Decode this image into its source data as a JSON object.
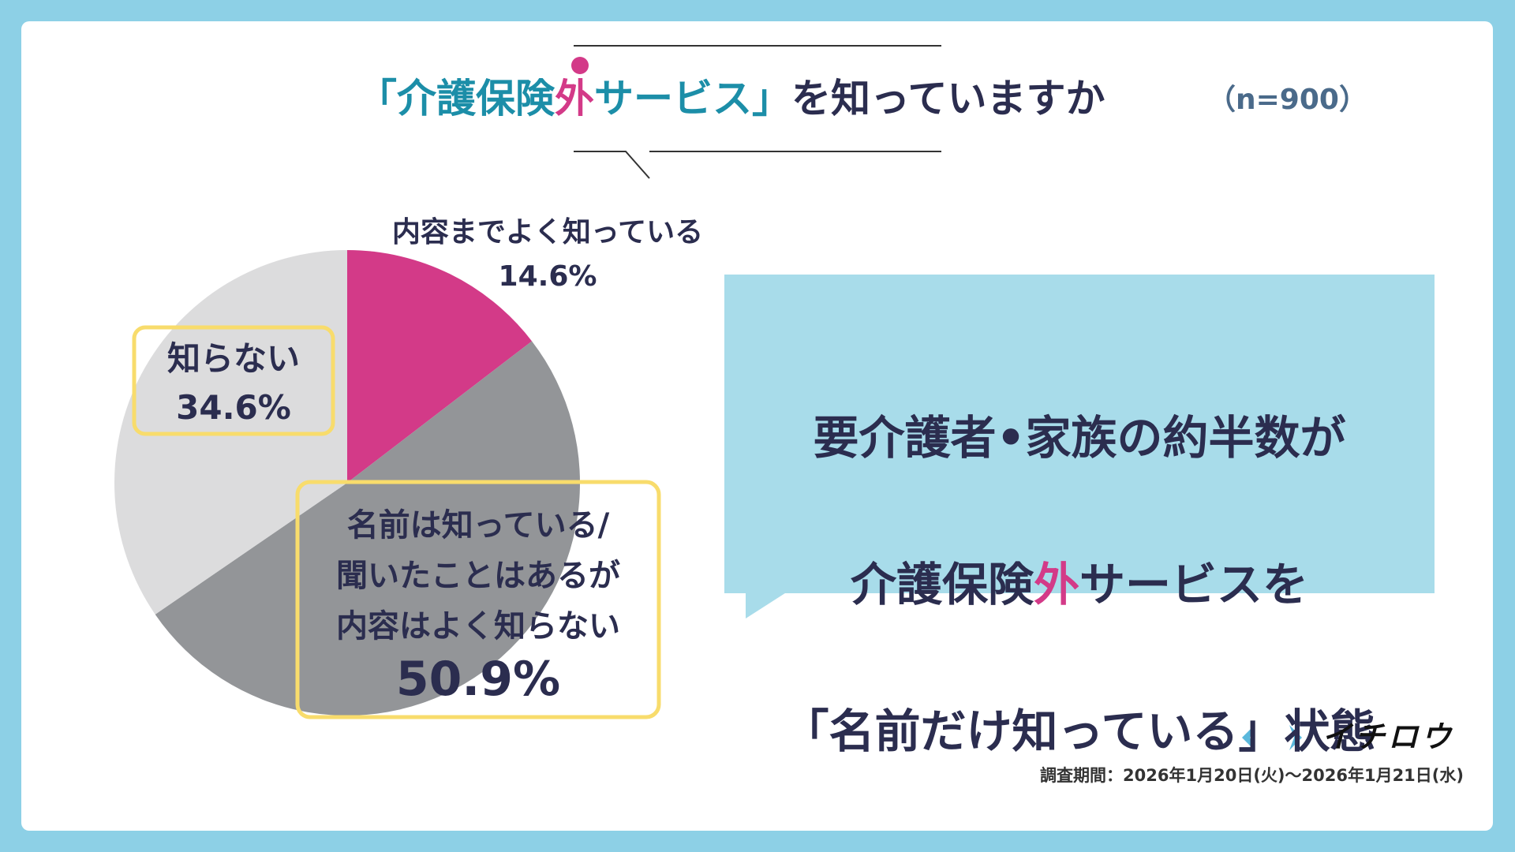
{
  "chart_data": {
    "type": "pie",
    "title": [
      "「介護保険",
      "外",
      "サービス」",
      "を知っていますか"
    ],
    "sample_size": "（n=900）",
    "categories": [
      "内容までよく知っている",
      "名前は知っている/\n聞いたことはあるが\n内容はよく知らない",
      "知らない"
    ],
    "values": [
      14.6,
      50.9,
      34.6
    ],
    "value_labels": [
      "14.6%",
      "50.9%",
      "34.6%"
    ],
    "colors": [
      "#d33a88",
      "#939598",
      "#dcdcdd"
    ],
    "callout": [
      [
        "要介護者•家族の約半数が"
      ],
      [
        "介護保険",
        "外",
        "サービスを"
      ],
      [
        "「名前だけ知っている」状態"
      ]
    ],
    "logo": "イチロウ",
    "survey_period": "調査期間：2026年1月20日(火)〜2026年1月21日(水)"
  }
}
